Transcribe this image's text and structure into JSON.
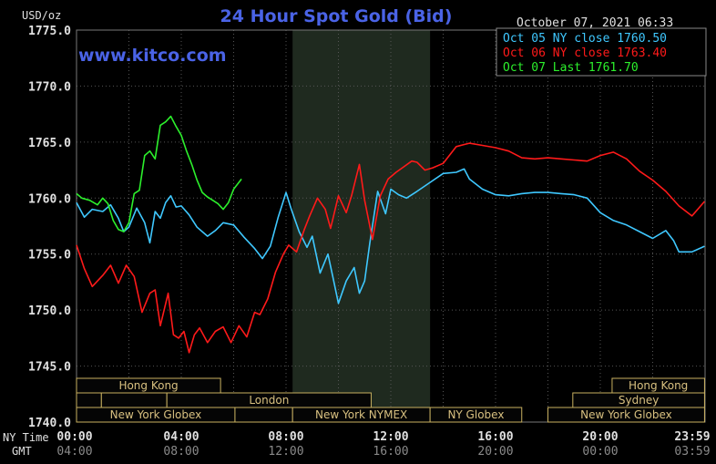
{
  "chart_data": {
    "type": "line",
    "title": "24 Hour Spot Gold (Bid)",
    "timestamp": "October 07, 2021 06:33",
    "watermark": "www.kitco.com",
    "ylabel": "USD/oz",
    "ylim": [
      1740,
      1775
    ],
    "xlim": [
      0,
      24
    ],
    "y_ticks": [
      "1775.0",
      "1770.0",
      "1765.0",
      "1760.0",
      "1755.0",
      "1750.0",
      "1745.0",
      "1740.0"
    ],
    "x_ticks_ny": [
      "00:00",
      "04:00",
      "08:00",
      "12:00",
      "16:00",
      "20:00",
      "23:59"
    ],
    "x_ticks_gmt": [
      "04:00",
      "08:00",
      "12:00",
      "16:00",
      "20:00",
      "00:00",
      "03:59"
    ],
    "ny_time_label": "NY Time",
    "gmt_label": "GMT",
    "legend_position": "top-right",
    "highlight_band": [
      8.25,
      13.5
    ],
    "colors": {
      "background": "#000000",
      "grid": "#555555",
      "band": "#1f2a1f",
      "title": "#4a63e6",
      "session_fill": "#050505",
      "session_border": "#c8b060",
      "session_text": "#d8c080"
    },
    "legend": [
      {
        "label": "Oct 05 NY close 1760.50",
        "color": "#3fc8ff"
      },
      {
        "label": "Oct 06 NY close 1763.40",
        "color": "#ff1a1a"
      },
      {
        "label": "Oct 07 Last 1761.70",
        "color": "#2cf02c"
      }
    ],
    "series": [
      {
        "name": "Oct 05 NY close 1760.50",
        "color": "#3fc8ff",
        "x": [
          0,
          0.3,
          0.6,
          1.0,
          1.3,
          1.6,
          1.8,
          2.0,
          2.3,
          2.6,
          2.8,
          3.0,
          3.2,
          3.4,
          3.6,
          3.8,
          4.0,
          4.3,
          4.6,
          5.0,
          5.3,
          5.6,
          6.0,
          6.4,
          6.8,
          7.1,
          7.4,
          7.7,
          8.0,
          8.2,
          8.5,
          8.8,
          9.0,
          9.3,
          9.6,
          9.8,
          10.0,
          10.3,
          10.6,
          10.8,
          11.0,
          11.2,
          11.5,
          11.8,
          12.0,
          12.3,
          12.6,
          13.0,
          13.5,
          14.0,
          14.5,
          14.8,
          15.0,
          15.5,
          16.0,
          16.5,
          17.0,
          17.5,
          18.0,
          18.5,
          19.0,
          19.5,
          20.0,
          20.5,
          21.0,
          21.5,
          22.0,
          22.5,
          22.8,
          23.0,
          23.5,
          23.98
        ],
        "values": [
          1759.6,
          1758.3,
          1759.0,
          1758.8,
          1759.4,
          1758.2,
          1757.0,
          1757.4,
          1759.1,
          1757.8,
          1756.0,
          1758.8,
          1758.2,
          1759.6,
          1760.2,
          1759.2,
          1759.3,
          1758.5,
          1757.4,
          1756.6,
          1757.1,
          1757.8,
          1757.6,
          1756.5,
          1755.5,
          1754.6,
          1755.7,
          1758.3,
          1760.5,
          1759.0,
          1757.0,
          1755.6,
          1756.6,
          1753.3,
          1755.0,
          1752.8,
          1750.6,
          1752.6,
          1753.8,
          1751.5,
          1752.6,
          1756.0,
          1760.6,
          1758.6,
          1760.8,
          1760.3,
          1760.0,
          1760.6,
          1761.4,
          1762.2,
          1762.3,
          1762.6,
          1761.7,
          1760.8,
          1760.3,
          1760.2,
          1760.4,
          1760.5,
          1760.5,
          1760.4,
          1760.3,
          1760.0,
          1758.7,
          1758.0,
          1757.6,
          1757.0,
          1756.4,
          1757.1,
          1756.2,
          1755.2,
          1755.2,
          1755.7
        ]
      },
      {
        "name": "Oct 06 NY close 1763.40",
        "color": "#ff1a1a",
        "x": [
          0,
          0.3,
          0.6,
          1.0,
          1.3,
          1.6,
          1.9,
          2.2,
          2.5,
          2.8,
          3.0,
          3.2,
          3.5,
          3.7,
          3.9,
          4.1,
          4.3,
          4.5,
          4.7,
          5.0,
          5.3,
          5.6,
          5.9,
          6.2,
          6.5,
          6.8,
          7.0,
          7.3,
          7.6,
          7.9,
          8.1,
          8.4,
          8.7,
          8.9,
          9.2,
          9.5,
          9.7,
          10.0,
          10.3,
          10.5,
          10.8,
          11.0,
          11.3,
          11.6,
          11.9,
          12.2,
          12.5,
          12.8,
          13.0,
          13.3,
          13.6,
          14.0,
          14.5,
          15.0,
          15.5,
          16.0,
          16.5,
          17.0,
          17.5,
          18.0,
          18.5,
          19.0,
          19.5,
          20.0,
          20.5,
          21.0,
          21.5,
          22.0,
          22.5,
          23.0,
          23.5,
          23.98
        ],
        "values": [
          1755.8,
          1753.7,
          1752.1,
          1753.1,
          1754.0,
          1752.4,
          1754.0,
          1753.0,
          1749.8,
          1751.5,
          1751.8,
          1748.6,
          1751.5,
          1747.8,
          1747.5,
          1748.1,
          1746.2,
          1747.8,
          1748.4,
          1747.1,
          1748.1,
          1748.5,
          1747.1,
          1748.6,
          1747.6,
          1749.8,
          1749.6,
          1751.0,
          1753.4,
          1755.0,
          1755.8,
          1755.2,
          1757.2,
          1758.4,
          1760.0,
          1759.0,
          1757.3,
          1760.2,
          1758.7,
          1760.2,
          1763.0,
          1759.8,
          1756.3,
          1760.2,
          1761.7,
          1762.3,
          1762.8,
          1763.3,
          1763.2,
          1762.5,
          1762.7,
          1763.1,
          1764.6,
          1764.9,
          1764.7,
          1764.5,
          1764.2,
          1763.6,
          1763.5,
          1763.6,
          1763.5,
          1763.4,
          1763.3,
          1763.8,
          1764.1,
          1763.5,
          1762.4,
          1761.6,
          1760.6,
          1759.3,
          1758.4,
          1759.7
        ]
      },
      {
        "name": "Oct 07 Last 1761.70",
        "color": "#2cf02c",
        "x": [
          0,
          0.2,
          0.5,
          0.8,
          1.0,
          1.2,
          1.4,
          1.6,
          1.8,
          2.0,
          2.2,
          2.4,
          2.6,
          2.8,
          3.0,
          3.2,
          3.4,
          3.6,
          3.8,
          4.0,
          4.2,
          4.4,
          4.6,
          4.8,
          5.0,
          5.2,
          5.4,
          5.6,
          5.8,
          6.0,
          6.3
        ],
        "values": [
          1760.4,
          1760.0,
          1759.8,
          1759.4,
          1760.0,
          1759.5,
          1758.0,
          1757.2,
          1757.0,
          1757.8,
          1760.4,
          1760.7,
          1763.8,
          1764.2,
          1763.5,
          1766.5,
          1766.8,
          1767.3,
          1766.4,
          1765.6,
          1764.2,
          1763.0,
          1761.6,
          1760.5,
          1760.1,
          1759.8,
          1759.5,
          1759.0,
          1759.6,
          1760.8,
          1761.7
        ]
      }
    ],
    "sessions": [
      {
        "label": "Hong Kong",
        "row": 0,
        "start": 0,
        "end": 5.5
      },
      {
        "label": "",
        "row": 1,
        "start": 0,
        "end": 0.95
      },
      {
        "label": "",
        "row": 1,
        "start": 0.95,
        "end": 3.45
      },
      {
        "label": "London",
        "row": 1,
        "start": 3.45,
        "end": 11.25
      },
      {
        "label": "New York Globex",
        "row": 2,
        "start": 0,
        "end": 6.05
      },
      {
        "label": "",
        "row": 2,
        "start": 6.05,
        "end": 8.25
      },
      {
        "label": "New York NYMEX",
        "row": 2,
        "start": 8.25,
        "end": 13.5
      },
      {
        "label": "NY Globex",
        "row": 2,
        "start": 13.5,
        "end": 17.0
      },
      {
        "label": "Hong Kong",
        "row": 0,
        "start": 20.45,
        "end": 23.98
      },
      {
        "label": "Sydney",
        "row": 1,
        "start": 18.95,
        "end": 23.98
      },
      {
        "label": "New York Globex",
        "row": 2,
        "start": 18.0,
        "end": 23.98
      }
    ]
  }
}
